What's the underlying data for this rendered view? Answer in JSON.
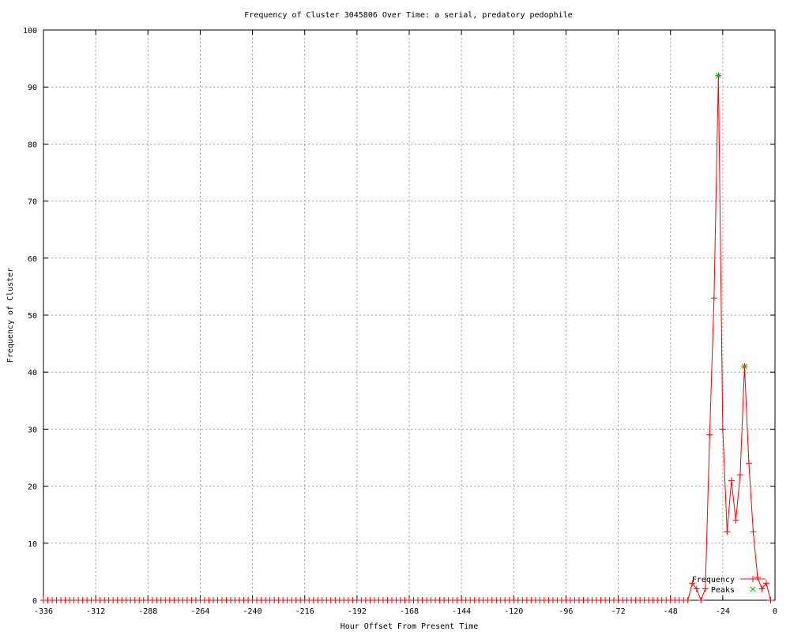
{
  "chart_data": {
    "type": "line",
    "title": "Frequency of Cluster 3045806 Over Time: a serial, predatory pedophile",
    "xlabel": "Hour Offset From Present Time",
    "ylabel": "Frequency of Cluster",
    "xlim": [
      -336,
      0
    ],
    "ylim": [
      0,
      100
    ],
    "xticks": [
      -336,
      -312,
      -288,
      -264,
      -240,
      -216,
      -192,
      -168,
      -144,
      -120,
      -96,
      -72,
      -48,
      -24,
      0
    ],
    "yticks": [
      0,
      10,
      20,
      30,
      40,
      50,
      60,
      70,
      80,
      90,
      100
    ],
    "grid": true,
    "legend_position": "bottom-right",
    "series": [
      {
        "name": "Frequency",
        "color": "#ff0000",
        "marker": "+",
        "x": [
          -336,
          -334,
          -332,
          -330,
          -328,
          -326,
          -324,
          -322,
          -320,
          -318,
          -316,
          -314,
          -312,
          -310,
          -308,
          -306,
          -304,
          -302,
          -300,
          -298,
          -296,
          -294,
          -292,
          -290,
          -288,
          -286,
          -284,
          -282,
          -280,
          -278,
          -276,
          -274,
          -272,
          -270,
          -268,
          -266,
          -264,
          -262,
          -260,
          -258,
          -256,
          -254,
          -252,
          -250,
          -248,
          -246,
          -244,
          -242,
          -240,
          -238,
          -236,
          -234,
          -232,
          -230,
          -228,
          -226,
          -224,
          -222,
          -220,
          -218,
          -216,
          -214,
          -212,
          -210,
          -208,
          -206,
          -204,
          -202,
          -200,
          -198,
          -196,
          -194,
          -192,
          -190,
          -188,
          -186,
          -184,
          -182,
          -180,
          -178,
          -176,
          -174,
          -172,
          -170,
          -168,
          -166,
          -164,
          -162,
          -160,
          -158,
          -156,
          -154,
          -152,
          -150,
          -148,
          -146,
          -144,
          -142,
          -140,
          -138,
          -136,
          -134,
          -132,
          -130,
          -128,
          -126,
          -124,
          -122,
          -120,
          -118,
          -116,
          -114,
          -112,
          -110,
          -108,
          -106,
          -104,
          -102,
          -100,
          -98,
          -96,
          -94,
          -92,
          -90,
          -88,
          -86,
          -84,
          -82,
          -80,
          -78,
          -76,
          -74,
          -72,
          -70,
          -68,
          -66,
          -64,
          -62,
          -60,
          -58,
          -56,
          -54,
          -52,
          -50,
          -48,
          -46,
          -44,
          -42,
          -40,
          -38,
          -36,
          -34,
          -32,
          -30,
          -28,
          -26,
          -24,
          -22,
          -20,
          -18,
          -16,
          -14,
          -12,
          -10,
          -8,
          -6,
          -4,
          -2
        ],
        "y": [
          0,
          0,
          0,
          0,
          0,
          0,
          0,
          0,
          0,
          0,
          0,
          0,
          0,
          0,
          0,
          0,
          0,
          0,
          0,
          0,
          0,
          0,
          0,
          0,
          0,
          0,
          0,
          0,
          0,
          0,
          0,
          0,
          0,
          0,
          0,
          0,
          0,
          0,
          0,
          0,
          0,
          0,
          0,
          0,
          0,
          0,
          0,
          0,
          0,
          0,
          0,
          0,
          0,
          0,
          0,
          0,
          0,
          0,
          0,
          0,
          0,
          0,
          0,
          0,
          0,
          0,
          0,
          0,
          0,
          0,
          0,
          0,
          0,
          0,
          0,
          0,
          0,
          0,
          0,
          0,
          0,
          0,
          0,
          0,
          0,
          0,
          0,
          0,
          0,
          0,
          0,
          0,
          0,
          0,
          0,
          0,
          0,
          0,
          0,
          0,
          0,
          0,
          0,
          0,
          0,
          0,
          0,
          0,
          0,
          0,
          0,
          0,
          0,
          0,
          0,
          0,
          0,
          0,
          0,
          0,
          0,
          0,
          0,
          0,
          0,
          0,
          0,
          0,
          0,
          0,
          0,
          0,
          0,
          0,
          0,
          0,
          0,
          0,
          0,
          0,
          0,
          0,
          0,
          0,
          0,
          0,
          0,
          0,
          0,
          3,
          2,
          0,
          2,
          29,
          53,
          92,
          30,
          12,
          21,
          14,
          22,
          41,
          24,
          12,
          4,
          2,
          3,
          0
        ]
      },
      {
        "name": "Peaks",
        "color": "#00c000",
        "marker": "x",
        "x": [
          -26,
          -14
        ],
        "y": [
          92,
          41
        ]
      }
    ]
  }
}
